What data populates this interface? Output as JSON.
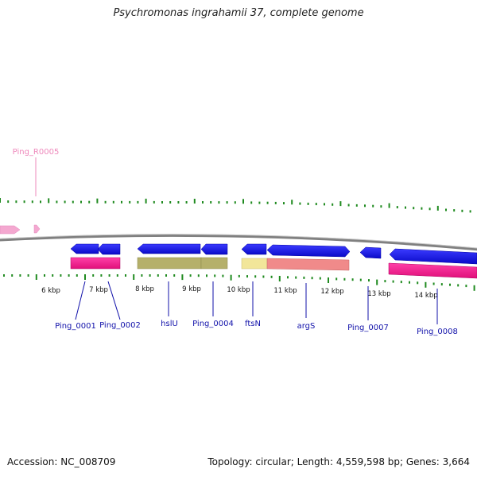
{
  "title": "Psychromonas ingrahamii 37, complete genome",
  "footer": {
    "accession": "Accession: NC_008709",
    "topology": "Topology: circular; Length: 4,559,598 bp; Genes: 3,664"
  },
  "scale_labels": [
    "6 kbp",
    "7 kbp",
    "8 kbp",
    "9 kbp",
    "10 kbp",
    "11 kbp",
    "12 kbp",
    "13 kbp",
    "14 kbp"
  ],
  "feature_labels": [
    {
      "text": "Ping_R0005",
      "strand": "forward",
      "color": "#ee88bb"
    },
    {
      "text": "Ping_0001",
      "strand": "reverse",
      "color": "#1111aa"
    },
    {
      "text": "Ping_0002",
      "strand": "reverse",
      "color": "#1111aa"
    },
    {
      "text": "hslU",
      "strand": "reverse",
      "color": "#1111aa"
    },
    {
      "text": "Ping_0004",
      "strand": "reverse",
      "color": "#1111aa"
    },
    {
      "text": "ftsN",
      "strand": "reverse",
      "color": "#1111aa"
    },
    {
      "text": "argS",
      "strand": "reverse",
      "color": "#1111aa"
    },
    {
      "text": "Ping_0007",
      "strand": "reverse",
      "color": "#1111aa"
    },
    {
      "text": "Ping_0008",
      "strand": "reverse",
      "color": "#1111aa"
    }
  ],
  "colors": {
    "backbone": "#808080",
    "cds": "#1010e0",
    "rrna": "#f4a8d0",
    "ticks": "#1f8a1f",
    "cog_magenta": "#ff1493",
    "cog_olive": "#b5b06a",
    "cog_yellow": "#f2e69a",
    "cog_salmon": "#f08a8a"
  }
}
